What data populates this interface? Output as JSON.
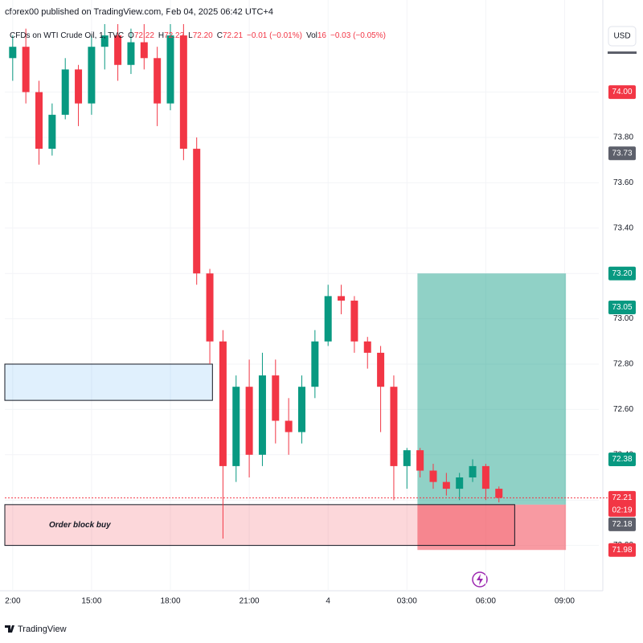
{
  "header": {
    "byline": "cforex00 published on TradingView.com, Feb 04, 2025 06:42 UTC+4",
    "currency": "USD",
    "brand": "TradingView"
  },
  "chart_data": {
    "type": "candlestick",
    "title": "CFDs on WTI Crude Oil, 1, TVC",
    "legend": {
      "o_label": "O",
      "open": "72.22",
      "h_label": "H",
      "high": "72.22",
      "l_label": "L",
      "low": "72.20",
      "c_label": "C",
      "close": "72.21",
      "change": "−0.01 (−0.01%)",
      "vol_label": "Vol",
      "volume": "16",
      "vol_change": "−0.03 (−0.05%)"
    },
    "up_color": "#089981",
    "down_color": "#f23645",
    "grid": true,
    "x": [
      0,
      0.5,
      1,
      1.5,
      2,
      2.5,
      3,
      3.5,
      4,
      4.5,
      5,
      5.5,
      6,
      6.5,
      7,
      7.5,
      8,
      8.5,
      9,
      9.5,
      10,
      10.5,
      11,
      11.5,
      12,
      12.5,
      13,
      13.5,
      14,
      14.5,
      15,
      15.5,
      16,
      16.5,
      17,
      17.5,
      18,
      18.5
    ],
    "open": [
      74.15,
      74.2,
      74.0,
      73.75,
      73.9,
      74.1,
      73.95,
      74.2,
      74.25,
      74.12,
      74.22,
      74.15,
      73.95,
      74.25,
      73.75,
      73.2,
      72.9,
      72.35,
      72.7,
      72.4,
      72.75,
      72.55,
      72.5,
      72.7,
      72.9,
      73.1,
      73.08,
      72.9,
      72.85,
      72.7,
      72.35,
      72.42,
      72.33,
      72.28,
      72.25,
      72.3,
      72.35,
      72.25
    ],
    "high": [
      74.25,
      74.28,
      74.05,
      73.95,
      74.15,
      74.12,
      74.25,
      74.3,
      74.3,
      74.28,
      74.3,
      74.2,
      74.3,
      74.3,
      73.8,
      73.22,
      72.95,
      72.75,
      72.82,
      72.85,
      72.82,
      72.65,
      72.75,
      72.95,
      73.15,
      73.15,
      73.1,
      72.92,
      72.88,
      72.75,
      72.43,
      72.43,
      72.36,
      72.32,
      72.32,
      72.38,
      72.36,
      72.26
    ],
    "low": [
      74.05,
      73.95,
      73.68,
      73.72,
      73.88,
      73.85,
      73.9,
      74.1,
      74.05,
      74.08,
      74.1,
      73.85,
      73.92,
      73.7,
      73.15,
      72.8,
      72.03,
      72.28,
      72.3,
      72.35,
      72.45,
      72.4,
      72.45,
      72.65,
      72.88,
      73.02,
      72.85,
      72.78,
      72.5,
      72.2,
      72.25,
      72.3,
      72.25,
      72.22,
      72.2,
      72.28,
      72.2,
      72.19
    ],
    "close": [
      74.2,
      74.0,
      73.75,
      73.9,
      74.1,
      73.95,
      74.2,
      74.25,
      74.12,
      74.22,
      74.15,
      73.95,
      74.25,
      73.75,
      73.2,
      72.9,
      72.35,
      72.7,
      72.4,
      72.75,
      72.55,
      72.5,
      72.7,
      72.9,
      73.1,
      73.08,
      72.9,
      72.85,
      72.7,
      72.35,
      72.42,
      72.33,
      72.28,
      72.25,
      72.3,
      72.35,
      72.25,
      72.21
    ],
    "xlim": [
      -0.3,
      22.3
    ],
    "xticks": [
      {
        "value": 0,
        "label": "2:00"
      },
      {
        "value": 3,
        "label": "15:00"
      },
      {
        "value": 6,
        "label": "18:00"
      },
      {
        "value": 9,
        "label": "21:00"
      },
      {
        "value": 12,
        "label": "4"
      },
      {
        "value": 15,
        "label": "03:00"
      },
      {
        "value": 18,
        "label": "06:00"
      },
      {
        "value": 21,
        "label": "09:00"
      }
    ],
    "ylim": [
      71.8,
      74.3
    ],
    "yticks": [
      {
        "value": 74,
        "label": "74.00"
      },
      {
        "value": 73.8,
        "label": "73.80"
      },
      {
        "value": 73.6,
        "label": "73.60"
      },
      {
        "value": 73.4,
        "label": "73.40"
      },
      {
        "value": 73.2,
        "label": "73.20"
      },
      {
        "value": 73,
        "label": "73.00"
      },
      {
        "value": 72.8,
        "label": "72.80"
      },
      {
        "value": 72.6,
        "label": "72.60"
      },
      {
        "value": 72.4,
        "label": "72.40"
      },
      {
        "value": 72.2,
        "label": "72.20"
      },
      {
        "value": 72,
        "label": "72.00"
      }
    ],
    "price_tags": [
      {
        "value": 74,
        "label": "74.00",
        "color": "#f23645"
      },
      {
        "value": 73.73,
        "color": "#5d606b"
      },
      {
        "value": 73.2,
        "label": "73.20",
        "color": "#089981"
      },
      {
        "value": 73.05,
        "color": "#089981"
      },
      {
        "value": 72.38,
        "color": "#089981"
      },
      {
        "value": 72.21,
        "color": "#f23645",
        "countdown": "02:19"
      },
      {
        "value": 72.18,
        "color": "#5d606b"
      },
      {
        "value": 71.98,
        "color": "#f23645"
      }
    ],
    "zones": [
      {
        "color": "rgba(33,150,243,0.14)",
        "ylim": [
          72.64,
          72.8
        ],
        "xlim": [
          -0.3,
          7.6
        ]
      },
      {
        "label": "Order block buy",
        "color": "rgba(242,54,69,0.2)",
        "ylim": [
          72.0,
          72.18
        ],
        "xlim": [
          -0.3,
          19.1
        ]
      }
    ],
    "position": {
      "xlim": [
        15.4,
        21.05
      ],
      "target": 73.2,
      "entry": 72.18,
      "stop": 71.98,
      "profit_color": "rgba(8,153,129,0.45)",
      "loss_color": "rgba(242,54,69,0.5)"
    }
  }
}
